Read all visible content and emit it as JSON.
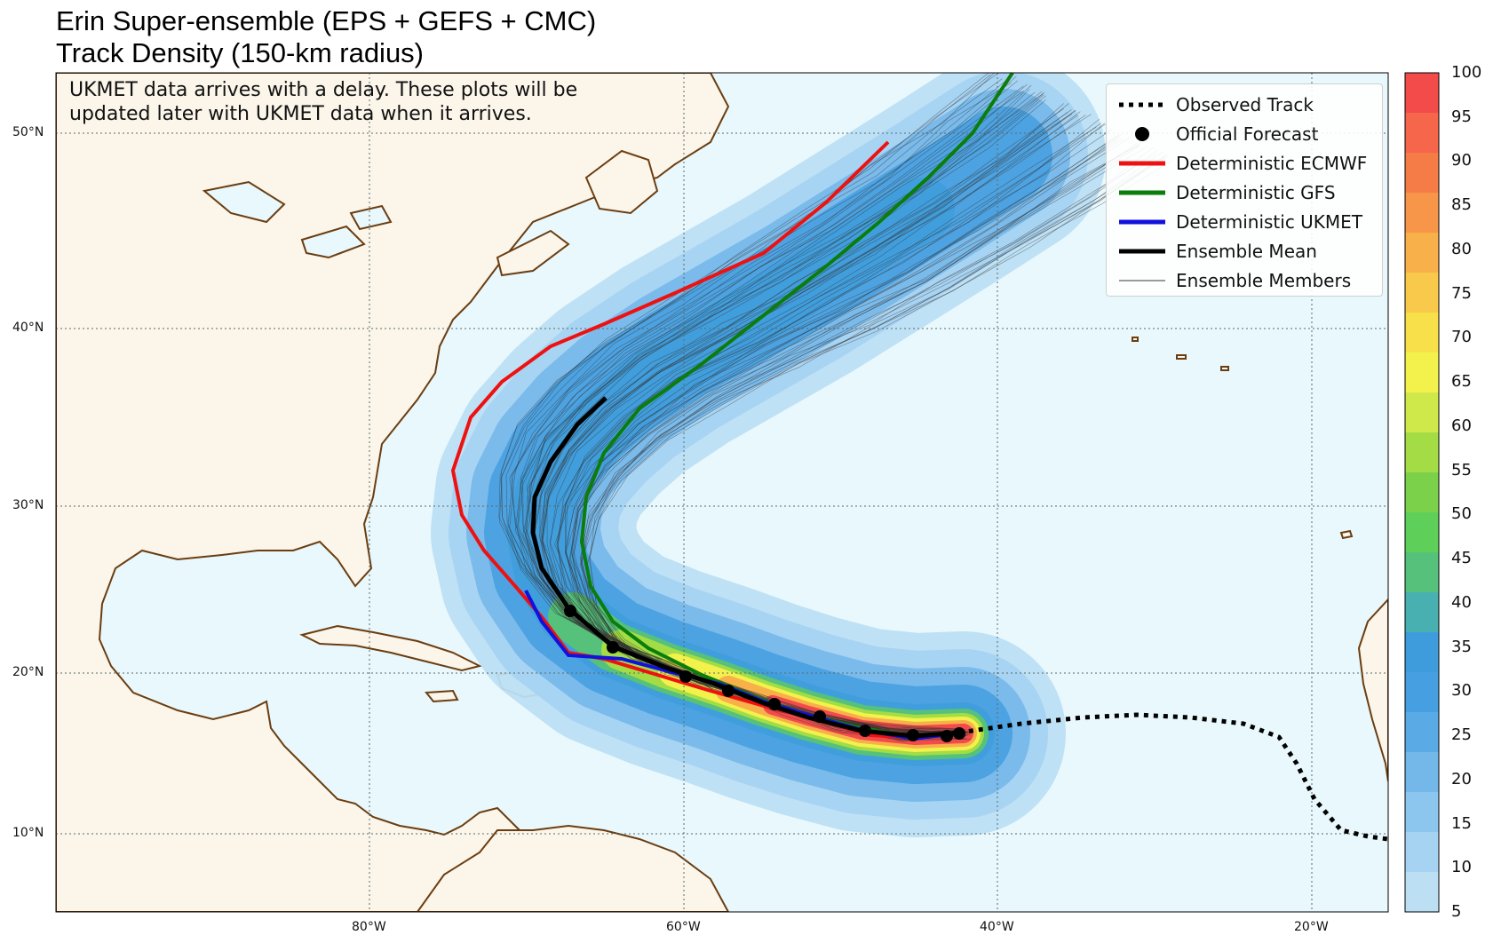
{
  "title": {
    "line1": "Erin Super-ensemble (EPS + GEFS + CMC)",
    "line2": "Track Density (150-km radius)"
  },
  "note": {
    "line1": "UKMET data arrives with a delay. These plots will be",
    "line2": "updated later with UKMET data when it arrives."
  },
  "legend": {
    "items": [
      {
        "label": "Observed Track",
        "style": "dotted",
        "color": "#000000"
      },
      {
        "label": "Official Forecast",
        "style": "dot",
        "color": "#000000"
      },
      {
        "label": "Deterministic ECMWF",
        "style": "line",
        "color": "#ee1111"
      },
      {
        "label": "Deterministic GFS",
        "style": "line",
        "color": "#0a7d0a"
      },
      {
        "label": "Deterministic UKMET",
        "style": "line",
        "color": "#1111dd"
      },
      {
        "label": "Ensemble Mean",
        "style": "line",
        "color": "#000000"
      },
      {
        "label": "Ensemble Members",
        "style": "thin",
        "color": "#333333"
      }
    ]
  },
  "axes": {
    "lat_labels": [
      "10°N",
      "20°N",
      "30°N",
      "40°N",
      "50°N"
    ],
    "lon_labels": [
      "80°W",
      "60°W",
      "40°W",
      "20°W"
    ]
  },
  "colorbar": {
    "ticks": [
      "5",
      "10",
      "15",
      "20",
      "25",
      "30",
      "35",
      "40",
      "45",
      "50",
      "55",
      "60",
      "65",
      "70",
      "75",
      "80",
      "85",
      "90",
      "95",
      "100"
    ],
    "colors": [
      "#bcdff4",
      "#a6d3f2",
      "#8cc6ee",
      "#74b8ea",
      "#5aaae5",
      "#459fe0",
      "#3f9cdc",
      "#48b0b0",
      "#55c17a",
      "#5ed05a",
      "#7cd14a",
      "#a3dc45",
      "#cfe84a",
      "#f3f24c",
      "#f7e04a",
      "#f8c94a",
      "#f8b04a",
      "#f79548",
      "#f67c47",
      "#f5664b",
      "#f34a4a"
    ]
  },
  "colors": {
    "ocean": "#e8f8fc",
    "land": "#fbf5ea",
    "coast": "#6b3d10"
  }
}
